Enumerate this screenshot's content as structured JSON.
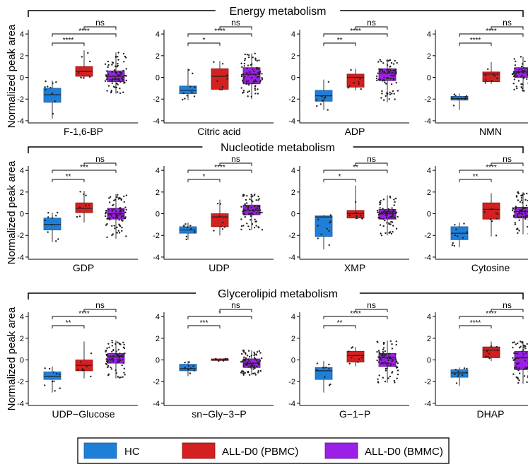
{
  "colors": {
    "HC": "#1f7fd6",
    "PBMC": "#d42020",
    "BMMC": "#9b1fe6",
    "point": "#222222"
  },
  "legend": {
    "entries": [
      {
        "key": "HC",
        "label": "HC"
      },
      {
        "key": "PBMC",
        "label": "ALL-D0 (PBMC)"
      },
      {
        "key": "BMMC",
        "label": "ALL-D0 (BMMC)"
      }
    ]
  },
  "chart_data": {
    "type": "boxplot",
    "ylabel": "Normalized peak area",
    "ylim": [
      -4.2,
      4.4
    ],
    "yticks": [
      -4,
      -2,
      0,
      2,
      4
    ],
    "group_order": [
      "HC",
      "PBMC",
      "BMMC"
    ],
    "rows": [
      {
        "title": "Energy metabolism",
        "panels": [
          {
            "label": "F-1,6-BP",
            "boxes": [
              {
                "group": "HC",
                "q1": -2.3,
                "median": -1.6,
                "q3": -1.0,
                "whisker_low": -3.8,
                "whisker_high": -0.3,
                "n_points": 10
              },
              {
                "group": "PBMC",
                "q1": 0.1,
                "median": 0.55,
                "q3": 1.0,
                "whisker_low": -0.1,
                "whisker_high": 2.5,
                "n_points": 8
              },
              {
                "group": "BMMC",
                "q1": -0.4,
                "median": 0.1,
                "q3": 0.6,
                "whisker_low": -1.5,
                "whisker_high": 2.3,
                "n_points": 80
              }
            ],
            "comparisons": [
              {
                "pair": "HC-PBMC",
                "sig": "****"
              },
              {
                "pair": "HC-BMMC",
                "sig": "****"
              },
              {
                "pair": "PBMC-BMMC",
                "sig": "ns"
              }
            ]
          },
          {
            "label": "Citric acid",
            "boxes": [
              {
                "group": "HC",
                "q1": -1.5,
                "median": -1.2,
                "q3": -0.8,
                "whisker_low": -2.1,
                "whisker_high": 0.8,
                "n_points": 10
              },
              {
                "group": "PBMC",
                "q1": -1.1,
                "median": 0.1,
                "q3": 0.8,
                "whisker_low": -1.2,
                "whisker_high": 1.5,
                "n_points": 8
              },
              {
                "group": "BMMC",
                "q1": -0.6,
                "median": 0.3,
                "q3": 0.9,
                "whisker_low": -2.0,
                "whisker_high": 2.2,
                "n_points": 80
              }
            ],
            "comparisons": [
              {
                "pair": "HC-PBMC",
                "sig": "*"
              },
              {
                "pair": "HC-BMMC",
                "sig": "****"
              },
              {
                "pair": "PBMC-BMMC",
                "sig": "ns"
              }
            ]
          },
          {
            "label": "ADP",
            "boxes": [
              {
                "group": "HC",
                "q1": -2.2,
                "median": -1.7,
                "q3": -1.2,
                "whisker_low": -3.0,
                "whisker_high": -0.2,
                "n_points": 10
              },
              {
                "group": "PBMC",
                "q1": -0.9,
                "median": 0.0,
                "q3": 0.3,
                "whisker_low": -1.2,
                "whisker_high": 0.8,
                "n_points": 8
              },
              {
                "group": "BMMC",
                "q1": -0.3,
                "median": 0.4,
                "q3": 0.8,
                "whisker_low": -2.3,
                "whisker_high": 1.7,
                "n_points": 80
              }
            ],
            "comparisons": [
              {
                "pair": "HC-PBMC",
                "sig": "**"
              },
              {
                "pair": "HC-BMMC",
                "sig": "****"
              },
              {
                "pair": "PBMC-BMMC",
                "sig": "ns"
              }
            ]
          },
          {
            "label": "NMN",
            "boxes": [
              {
                "group": "HC",
                "q1": -2.1,
                "median": -1.95,
                "q3": -1.75,
                "whisker_low": -3.0,
                "whisker_high": -1.5,
                "n_points": 10
              },
              {
                "group": "PBMC",
                "q1": -0.4,
                "median": 0.3,
                "q3": 0.5,
                "whisker_low": -0.6,
                "whisker_high": 1.4,
                "n_points": 8
              },
              {
                "group": "BMMC",
                "q1": 0.0,
                "median": 0.5,
                "q3": 0.9,
                "whisker_low": -1.3,
                "whisker_high": 1.9,
                "n_points": 80
              }
            ],
            "comparisons": [
              {
                "pair": "HC-PBMC",
                "sig": "****"
              },
              {
                "pair": "HC-BMMC",
                "sig": "****"
              },
              {
                "pair": "PBMC-BMMC",
                "sig": "ns"
              }
            ]
          }
        ]
      },
      {
        "title": "Nucleotide metabolism",
        "panels": [
          {
            "label": "GDP",
            "boxes": [
              {
                "group": "HC",
                "q1": -1.5,
                "median": -1.0,
                "q3": -0.4,
                "whisker_low": -2.6,
                "whisker_high": 0.1,
                "n_points": 10
              },
              {
                "group": "PBMC",
                "q1": 0.1,
                "median": 0.5,
                "q3": 1.0,
                "whisker_low": -0.8,
                "whisker_high": 2.1,
                "n_points": 8
              },
              {
                "group": "BMMC",
                "q1": -0.5,
                "median": 0.0,
                "q3": 0.5,
                "whisker_low": -2.3,
                "whisker_high": 1.8,
                "n_points": 80
              }
            ],
            "comparisons": [
              {
                "pair": "HC-PBMC",
                "sig": "**"
              },
              {
                "pair": "HC-BMMC",
                "sig": "***"
              },
              {
                "pair": "PBMC-BMMC",
                "sig": "ns"
              }
            ]
          },
          {
            "label": "UDP",
            "boxes": [
              {
                "group": "HC",
                "q1": -1.8,
                "median": -1.5,
                "q3": -1.2,
                "whisker_low": -2.4,
                "whisker_high": -0.8,
                "n_points": 10
              },
              {
                "group": "PBMC",
                "q1": -1.2,
                "median": -0.3,
                "q3": 0.0,
                "whisker_low": -2.0,
                "whisker_high": 1.3,
                "n_points": 8
              },
              {
                "group": "BMMC",
                "q1": -0.1,
                "median": 0.3,
                "q3": 0.8,
                "whisker_low": -1.5,
                "whisker_high": 1.8,
                "n_points": 80
              }
            ],
            "comparisons": [
              {
                "pair": "HC-PBMC",
                "sig": "*"
              },
              {
                "pair": "HC-BMMC",
                "sig": "****"
              },
              {
                "pair": "PBMC-BMMC",
                "sig": "ns"
              }
            ]
          },
          {
            "label": "XMP",
            "boxes": [
              {
                "group": "HC",
                "q1": -2.1,
                "median": -0.3,
                "q3": -0.2,
                "whisker_low": -3.3,
                "whisker_high": -0.1,
                "n_points": 10
              },
              {
                "group": "PBMC",
                "q1": -0.4,
                "median": 0.0,
                "q3": 0.3,
                "whisker_low": -0.5,
                "whisker_high": 2.6,
                "n_points": 8
              },
              {
                "group": "BMMC",
                "q1": -0.5,
                "median": 0.0,
                "q3": 0.4,
                "whisker_low": -2.0,
                "whisker_high": 1.7,
                "n_points": 80
              }
            ],
            "comparisons": [
              {
                "pair": "HC-PBMC",
                "sig": "*"
              },
              {
                "pair": "HC-BMMC",
                "sig": "**"
              },
              {
                "pair": "PBMC-BMMC",
                "sig": "ns"
              }
            ]
          },
          {
            "label": "Cytosine",
            "boxes": [
              {
                "group": "HC",
                "q1": -2.4,
                "median": -1.8,
                "q3": -1.2,
                "whisker_low": -3.1,
                "whisker_high": -0.8,
                "n_points": 10
              },
              {
                "group": "PBMC",
                "q1": -0.5,
                "median": 0.4,
                "q3": 1.0,
                "whisker_low": -2.1,
                "whisker_high": 1.9,
                "n_points": 8
              },
              {
                "group": "BMMC",
                "q1": -0.4,
                "median": 0.2,
                "q3": 0.6,
                "whisker_low": -1.9,
                "whisker_high": 2.0,
                "n_points": 80
              }
            ],
            "comparisons": [
              {
                "pair": "HC-PBMC",
                "sig": "**"
              },
              {
                "pair": "HC-BMMC",
                "sig": "****"
              },
              {
                "pair": "PBMC-BMMC",
                "sig": "ns"
              }
            ]
          }
        ]
      },
      {
        "title": "Glycerolipid metabolism",
        "panels": [
          {
            "label": "UDP−Glucose",
            "boxes": [
              {
                "group": "HC",
                "q1": -1.8,
                "median": -1.5,
                "q3": -1.1,
                "whisker_low": -3.0,
                "whisker_high": -0.6,
                "n_points": 10
              },
              {
                "group": "PBMC",
                "q1": -1.0,
                "median": -0.5,
                "q3": 0.0,
                "whisker_low": -1.7,
                "whisker_high": 1.7,
                "n_points": 8
              },
              {
                "group": "BMMC",
                "q1": -0.3,
                "median": 0.3,
                "q3": 0.6,
                "whisker_low": -1.7,
                "whisker_high": 1.8,
                "n_points": 80
              }
            ],
            "comparisons": [
              {
                "pair": "HC-PBMC",
                "sig": "**"
              },
              {
                "pair": "HC-BMMC",
                "sig": "****"
              },
              {
                "pair": "PBMC-BMMC",
                "sig": "ns"
              }
            ]
          },
          {
            "label": "sn−Gly−3−P",
            "boxes": [
              {
                "group": "HC",
                "q1": -1.0,
                "median": -0.8,
                "q3": -0.4,
                "whisker_low": -1.5,
                "whisker_high": -0.1,
                "n_points": 10
              },
              {
                "group": "PBMC",
                "q1": -0.05,
                "median": 0.0,
                "q3": 0.1,
                "whisker_low": -0.1,
                "whisker_high": 0.15,
                "n_points": 8
              },
              {
                "group": "BMMC",
                "q1": -0.7,
                "median": -0.3,
                "q3": 0.1,
                "whisker_low": -1.4,
                "whisker_high": 0.9,
                "n_points": 80
              }
            ],
            "comparisons": [
              {
                "pair": "HC-PBMC",
                "sig": "***"
              },
              {
                "pair": "HC-BMMC",
                "sig": "*"
              },
              {
                "pair": "PBMC-BMMC",
                "sig": "ns"
              }
            ]
          },
          {
            "label": "G−1−P",
            "boxes": [
              {
                "group": "HC",
                "q1": -1.8,
                "median": -1.0,
                "q3": -0.7,
                "whisker_low": -3.0,
                "whisker_high": -0.1,
                "n_points": 10
              },
              {
                "group": "PBMC",
                "q1": -0.2,
                "median": 0.4,
                "q3": 0.8,
                "whisker_low": -0.6,
                "whisker_high": 1.2,
                "n_points": 8
              },
              {
                "group": "BMMC",
                "q1": -0.6,
                "median": 0.2,
                "q3": 0.6,
                "whisker_low": -2.1,
                "whisker_high": 1.8,
                "n_points": 80
              }
            ],
            "comparisons": [
              {
                "pair": "HC-PBMC",
                "sig": "**"
              },
              {
                "pair": "HC-BMMC",
                "sig": "****"
              },
              {
                "pair": "PBMC-BMMC",
                "sig": "ns"
              }
            ]
          },
          {
            "label": "DHAP",
            "boxes": [
              {
                "group": "HC",
                "q1": -1.6,
                "median": -1.2,
                "q3": -0.9,
                "whisker_low": -2.4,
                "whisker_high": -0.7,
                "n_points": 10
              },
              {
                "group": "PBMC",
                "q1": 0.2,
                "median": 0.9,
                "q3": 1.2,
                "whisker_low": -0.1,
                "whisker_high": 1.7,
                "n_points": 8
              },
              {
                "group": "BMMC",
                "q1": -0.9,
                "median": 0.2,
                "q3": 0.8,
                "whisker_low": -2.2,
                "whisker_high": 1.7,
                "n_points": 80
              }
            ],
            "comparisons": [
              {
                "pair": "HC-PBMC",
                "sig": "****"
              },
              {
                "pair": "HC-BMMC",
                "sig": "****"
              },
              {
                "pair": "PBMC-BMMC",
                "sig": "ns"
              }
            ]
          }
        ]
      }
    ]
  }
}
